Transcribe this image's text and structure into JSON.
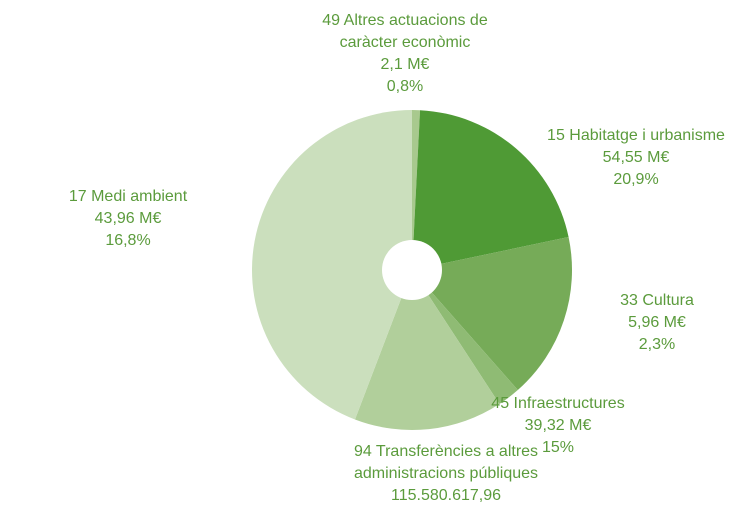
{
  "chart_data": {
    "type": "pie",
    "categories": [
      "49 Altres actuacions de caràcter econòmic",
      "15 Habitatge i urbanisme",
      "17 Medi ambient",
      "33 Cultura",
      "45 Infraestructures",
      "94 Transferències a altres administracions públiques"
    ],
    "amounts": [
      "2,1 M€",
      "54,55 M€",
      "43,96 M€",
      "5,96 M€",
      "39,32 M€",
      "115.580.617,96"
    ],
    "values": [
      0.8,
      20.9,
      16.8,
      2.3,
      15,
      44.2
    ],
    "value_labels": [
      "0,8%",
      "20,9%",
      "16,8%",
      "2,3%",
      "15%",
      "44,2%"
    ],
    "colors": [
      "#a8c98e",
      "#4f9a35",
      "#76ab58",
      "#8fbb74",
      "#b1cf9b",
      "#cbdfbd"
    ]
  }
}
